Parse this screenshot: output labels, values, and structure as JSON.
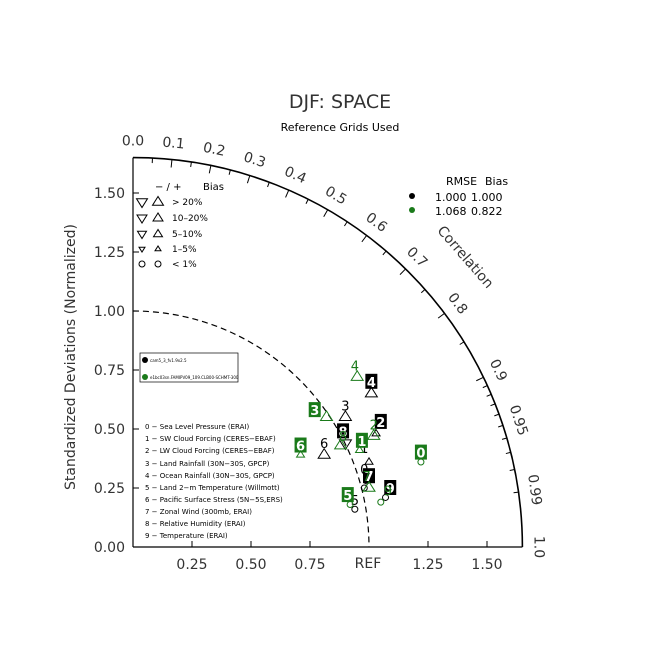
{
  "chart_data": {
    "type": "scatter",
    "title": "DJF: SPACE",
    "subtitle": "Reference Grids Used",
    "ylabel": "Standardized Deviations (Normalized)",
    "correlation_label": "Correlation",
    "ref_label": "REF",
    "std_max": 1.65,
    "ref_std": 1.0,
    "x_ticks": [
      "0.25",
      "0.50",
      "0.75",
      "1.25",
      "1.50"
    ],
    "y_ticks": [
      "0.00",
      "0.25",
      "0.50",
      "0.75",
      "1.00",
      "1.25",
      "1.50"
    ],
    "corr_ticks": [
      "0.0",
      "0.1",
      "0.2",
      "0.3",
      "0.4",
      "0.5",
      "0.6",
      "0.7",
      "0.8",
      "0.9",
      "0.95",
      "0.99",
      "1.0"
    ],
    "bias_legend": {
      "header_sign": "− / +",
      "header_label": "Bias",
      "rows": [
        "> 20%",
        "10–20%",
        "5–10%",
        "1–5%",
        "< 1%"
      ]
    },
    "stats_legend": {
      "header_rmse": "RMSE",
      "header_bias": "Bias",
      "rows": [
        {
          "rmse": "1.000",
          "bias": "1.000",
          "color": "#000000"
        },
        {
          "rmse": "1.068",
          "bias": "0.822",
          "color": "#1a7a1a"
        }
      ]
    },
    "cases": [
      {
        "label": "cam5_3_fv1.9x2.5",
        "color": "#000000"
      },
      {
        "label": "e1bc03sn.FAMIPV09_109.CLB00-SCHMT-300",
        "color": "#1a7a1a"
      }
    ],
    "variables": [
      "0 − Sea Level Pressure (ERAI)",
      "1 − SW Cloud Forcing (CERES−EBAF)",
      "2 − LW Cloud Forcing (CERES−EBAF)",
      "3 − Land Rainfall (30N−30S, GPCP)",
      "4 − Ocean Rainfall (30N−30S, GPCP)",
      "5 − Land 2−m Temperature (Willmott)",
      "6 − Pacific Surface Stress (5N−5S,ERS)",
      "7 − Zonal Wind (300mb, ERAI)",
      "8 − Relative Humidity (ERAI)",
      "9 − Temperature (ERAI)"
    ],
    "series": [
      {
        "name": "cam5_3_fv1.9x2.5",
        "color": "#000000",
        "points": [
          {
            "id": "0",
            "x": 0.98,
            "y": 0.33,
            "box": false,
            "marker": "circle",
            "mx": 0.99,
            "my": 0.28
          },
          {
            "id": "1",
            "x": 0.98,
            "y": 0.42,
            "box": false,
            "marker": "tri-up-small",
            "mx": 1.0,
            "my": 0.36
          },
          {
            "id": "2",
            "x": 1.05,
            "y": 0.53,
            "box": true,
            "marker": "tri-up-small",
            "mx": 1.03,
            "my": 0.48
          },
          {
            "id": "3",
            "x": 0.9,
            "y": 0.6,
            "box": false,
            "marker": "tri-up-med",
            "mx": 0.9,
            "my": 0.55
          },
          {
            "id": "4",
            "x": 1.01,
            "y": 0.7,
            "box": true,
            "marker": "tri-up-med",
            "mx": 1.01,
            "my": 0.65
          },
          {
            "id": "5",
            "x": 0.94,
            "y": 0.2,
            "box": false,
            "marker": "circle",
            "mx": 0.94,
            "my": 0.16
          },
          {
            "id": "6",
            "x": 0.81,
            "y": 0.44,
            "box": false,
            "marker": "tri-up-med",
            "mx": 0.81,
            "my": 0.39
          },
          {
            "id": "7",
            "x": 1.0,
            "y": 0.3,
            "box": true,
            "marker": "circle",
            "mx": 0.98,
            "my": 0.25
          },
          {
            "id": "8",
            "x": 0.89,
            "y": 0.49,
            "box": true,
            "marker": "tri-down-med",
            "mx": 0.9,
            "my": 0.44
          },
          {
            "id": "9",
            "x": 1.09,
            "y": 0.25,
            "box": true,
            "marker": "circle",
            "mx": 1.07,
            "my": 0.21
          }
        ]
      },
      {
        "name": "e1bc03sn.FAMIPV09_109.CLB00-SCHMT-300",
        "color": "#1a7a1a",
        "points": [
          {
            "id": "0",
            "x": 1.22,
            "y": 0.4,
            "box": true,
            "marker": "circle",
            "mx": 1.22,
            "my": 0.36
          },
          {
            "id": "1",
            "x": 0.97,
            "y": 0.45,
            "box": true,
            "marker": "tri-up-small",
            "mx": 0.96,
            "my": 0.41
          },
          {
            "id": "2",
            "x": 1.02,
            "y": 0.52,
            "box": false,
            "marker": "tri-up-med",
            "mx": 1.02,
            "my": 0.47
          },
          {
            "id": "3",
            "x": 0.77,
            "y": 0.58,
            "box": true,
            "marker": "tri-up-med",
            "mx": 0.82,
            "my": 0.55
          },
          {
            "id": "4",
            "x": 0.94,
            "y": 0.77,
            "box": false,
            "marker": "tri-up-med",
            "mx": 0.95,
            "my": 0.72
          },
          {
            "id": "5",
            "x": 0.91,
            "y": 0.22,
            "box": true,
            "marker": "circle",
            "mx": 0.92,
            "my": 0.18
          },
          {
            "id": "6",
            "x": 0.71,
            "y": 0.43,
            "box": true,
            "marker": "tri-up-small",
            "mx": 0.71,
            "my": 0.39
          },
          {
            "id": "7",
            "x": 0.99,
            "y": 0.3,
            "box": false,
            "marker": "tri-up-med",
            "mx": 1.0,
            "my": 0.25
          },
          {
            "id": "8",
            "x": 0.89,
            "y": 0.47,
            "box": false,
            "marker": "tri-up-med",
            "mx": 0.88,
            "my": 0.43
          },
          {
            "id": "9",
            "x": 1.08,
            "y": 0.24,
            "box": false,
            "marker": "circle",
            "mx": 1.05,
            "my": 0.19
          }
        ]
      }
    ]
  }
}
